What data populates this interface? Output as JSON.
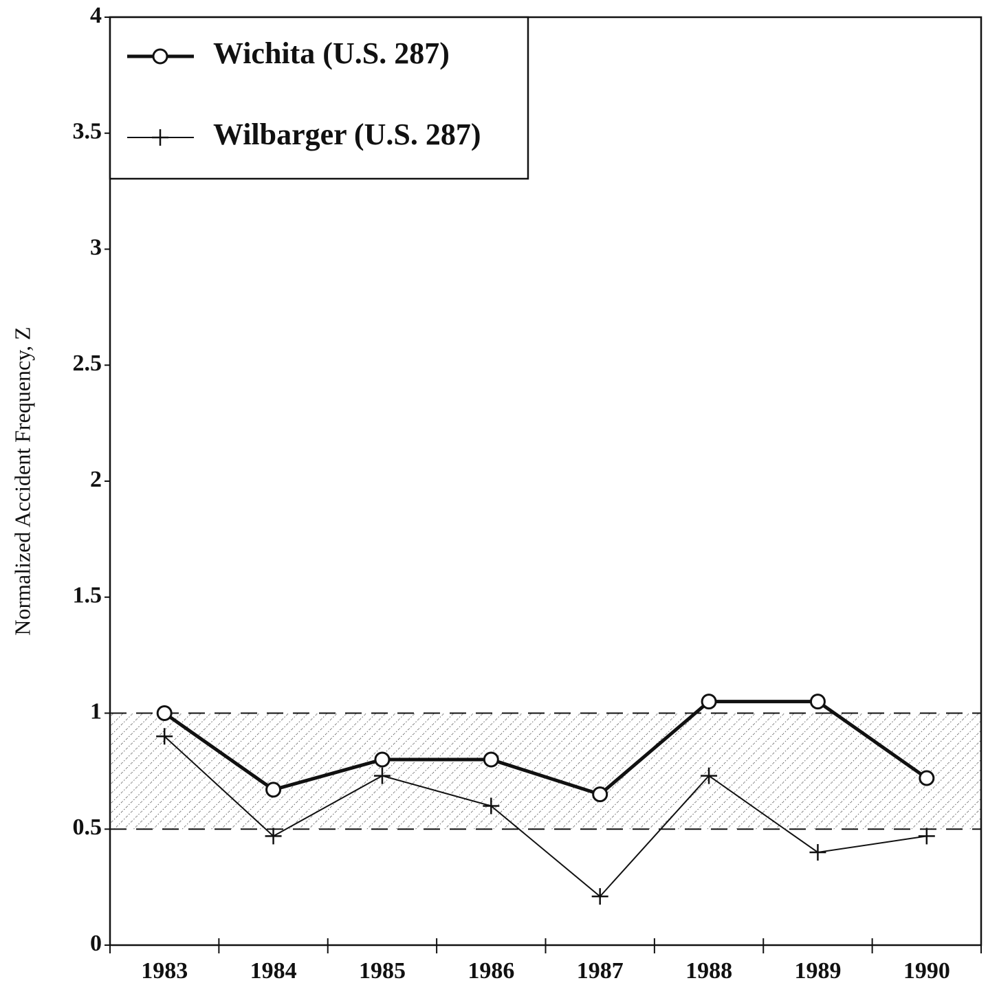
{
  "chart_data": {
    "type": "line",
    "ylabel": "Normalized Accident Frequency, Z",
    "categories": [
      "1983",
      "1984",
      "1985",
      "1986",
      "1987",
      "1988",
      "1989",
      "1990"
    ],
    "series": [
      {
        "name": "Wichita (U.S. 287)",
        "color": "#111111",
        "marker": "circle",
        "values": [
          1.0,
          0.67,
          0.8,
          0.8,
          0.65,
          1.05,
          1.05,
          0.72
        ]
      },
      {
        "name": "Wilbarger (U.S. 287)",
        "color": "#111111",
        "marker": "plus",
        "values": [
          0.9,
          0.47,
          0.73,
          0.6,
          0.21,
          0.73,
          0.4,
          0.47
        ]
      }
    ],
    "reference_band": [
      0.5,
      1
    ],
    "ylim": [
      0,
      4
    ],
    "yticks": [
      0,
      0.5,
      1,
      1.5,
      2,
      2.5,
      3,
      3.5,
      4
    ],
    "legend": "upper left"
  }
}
